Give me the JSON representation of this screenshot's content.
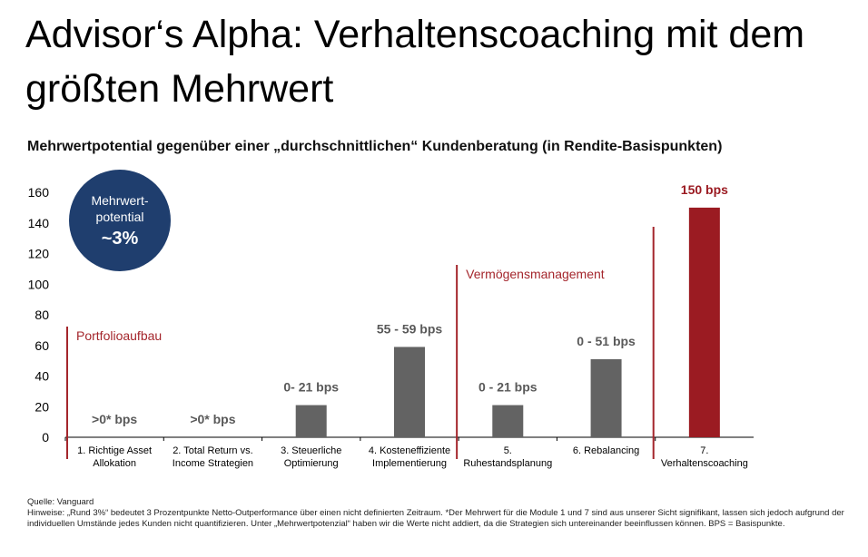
{
  "title": "Advisor‘s Alpha: Verhaltenscoaching mit dem größten Mehrwert",
  "subtitle": "Mehrwertpotential gegenüber einer „durchschnittlichen“ Kundenberatung (in Rendite-Basispunkten)",
  "badge": {
    "line1": "Mehrwert-",
    "line2": "potential",
    "value": "~3%",
    "color": "#1f3e6e"
  },
  "sections": [
    {
      "label": "Portfolioaufbau",
      "from_category": 0
    },
    {
      "label": "Vermögensmanagement",
      "from_category": 4
    },
    {
      "label": "",
      "from_category": 6
    }
  ],
  "chart_data": {
    "type": "bar",
    "categories": [
      [
        "1. Richtige Asset",
        "Allokation"
      ],
      [
        "2. Total Return vs.",
        "Income Strategien"
      ],
      [
        "3. Steuerliche",
        "Optimierung"
      ],
      [
        "4. Kosteneffiziente",
        "Implementierung"
      ],
      [
        "5.",
        "Ruhestandsplanung"
      ],
      [
        "6. Rebalancing"
      ],
      [
        "7.",
        "Verhaltenscoaching"
      ]
    ],
    "values": [
      0,
      0,
      21,
      59,
      21,
      51,
      150
    ],
    "data_labels": [
      ">0* bps",
      ">0* bps",
      "0- 21 bps",
      "55 - 59 bps",
      "0 - 21 bps",
      "0 - 51 bps",
      "150 bps"
    ],
    "highlight_index": 6,
    "colors": {
      "bar": "#636363",
      "highlight": "#9b1b22",
      "label": "#595959",
      "section": "#a4262c"
    },
    "ylim": [
      0,
      160
    ],
    "yticks": [
      0,
      20,
      40,
      60,
      80,
      100,
      120,
      140,
      160
    ],
    "xlabel": "",
    "ylabel": "",
    "grid": false
  },
  "footer": {
    "source": "Quelle: Vanguard",
    "notes": "Hinweise: „Rund 3%“ bedeutet 3 Prozentpunkte Netto-Outperformance über einen nicht definierten Zeitraum. *Der Mehrwert für die Module 1 und 7 sind aus unserer Sicht signifikant, lassen sich jedoch aufgrund der individuellen Umstände jedes Kunden nicht quantifizieren. Unter „Mehrwertpotenzial“ haben wir die Werte nicht addiert, da die Strategien sich untereinander beeinflussen können. BPS = Basispunkte."
  }
}
